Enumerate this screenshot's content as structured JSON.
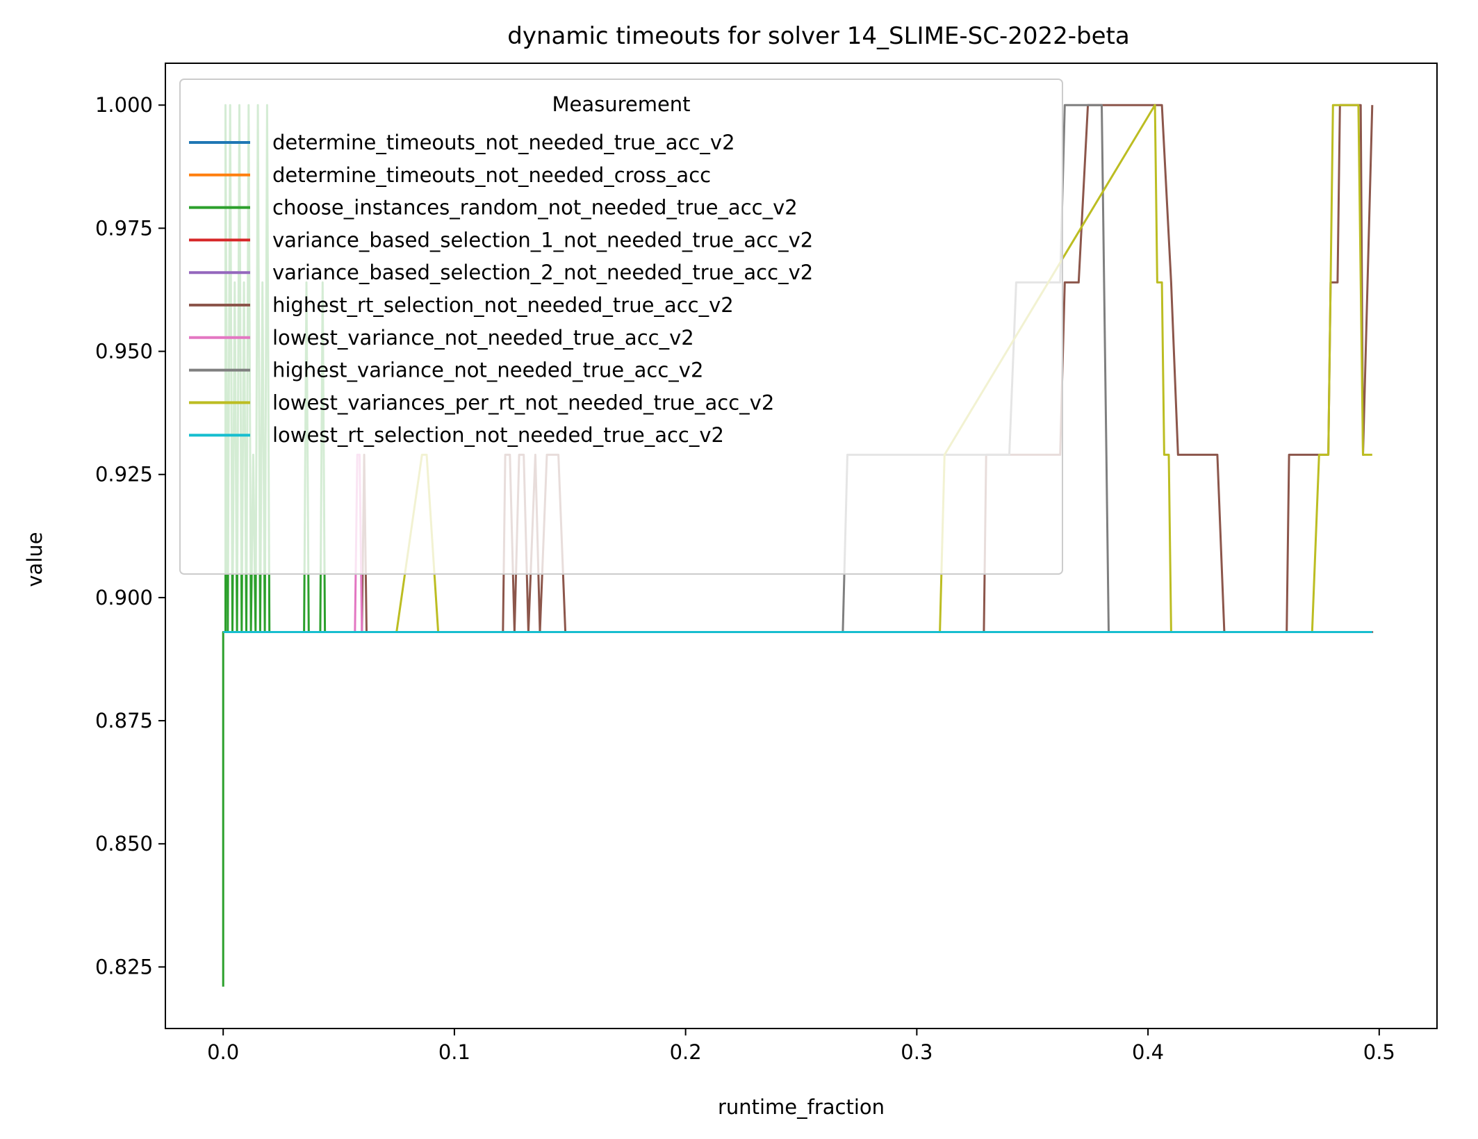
{
  "chart_data": {
    "type": "line",
    "title": "dynamic timeouts for solver 14_SLIME-SC-2022-beta",
    "xlabel": "runtime_fraction",
    "ylabel": "value",
    "xlim": [
      -0.025,
      0.525
    ],
    "ylim": [
      0.8125,
      1.0085
    ],
    "xticks": [
      0.0,
      0.1,
      0.2,
      0.3,
      0.4,
      0.5
    ],
    "xtick_labels": [
      "0.0",
      "0.1",
      "0.2",
      "0.3",
      "0.4",
      "0.5"
    ],
    "yticks": [
      0.825,
      0.85,
      0.875,
      0.9,
      0.925,
      0.95,
      0.975,
      1.0
    ],
    "ytick_labels": [
      "0.825",
      "0.850",
      "0.875",
      "0.900",
      "0.925",
      "0.950",
      "0.975",
      "1.000"
    ],
    "grid": false,
    "legend": {
      "title": "Measurement",
      "placement": "upper-left"
    },
    "series": [
      {
        "name": "determine_timeouts_not_needed_true_acc_v2",
        "color": "#1f77b4",
        "x": [
          0.0,
          0.497
        ],
        "y": [
          0.893,
          0.893
        ]
      },
      {
        "name": "determine_timeouts_not_needed_cross_acc",
        "color": "#ff7f0e",
        "x": [
          0.0,
          0.497
        ],
        "y": [
          0.893,
          0.893
        ]
      },
      {
        "name": "choose_instances_random_not_needed_true_acc_v2",
        "color": "#2ca02c",
        "x": [
          0.0,
          0.0,
          0.001,
          0.001,
          0.002,
          0.003,
          0.004,
          0.005,
          0.006,
          0.007,
          0.008,
          0.009,
          0.01,
          0.011,
          0.012,
          0.013,
          0.014,
          0.015,
          0.016,
          0.017,
          0.018,
          0.019,
          0.02,
          0.021,
          0.035,
          0.036,
          0.037,
          0.038,
          0.042,
          0.043,
          0.044,
          0.045,
          0.497
        ],
        "y": [
          0.821,
          0.893,
          0.893,
          1.0,
          0.893,
          1.0,
          0.893,
          0.964,
          0.893,
          1.0,
          0.893,
          0.964,
          0.893,
          1.0,
          0.893,
          0.929,
          0.893,
          1.0,
          0.893,
          0.964,
          0.893,
          1.0,
          0.893,
          0.893,
          0.893,
          0.964,
          0.893,
          0.893,
          0.893,
          0.964,
          0.893,
          0.893,
          0.893
        ]
      },
      {
        "name": "variance_based_selection_1_not_needed_true_acc_v2",
        "color": "#d62728",
        "x": [
          0.0,
          0.497
        ],
        "y": [
          0.893,
          0.893
        ]
      },
      {
        "name": "variance_based_selection_2_not_needed_true_acc_v2",
        "color": "#9467bd",
        "x": [
          0.0,
          0.497
        ],
        "y": [
          0.893,
          0.893
        ]
      },
      {
        "name": "highest_rt_selection_not_needed_true_acc_v2",
        "color": "#8c564b",
        "x": [
          0.0,
          0.06,
          0.061,
          0.062,
          0.121,
          0.122,
          0.124,
          0.126,
          0.128,
          0.13,
          0.132,
          0.135,
          0.137,
          0.14,
          0.145,
          0.148,
          0.497,
          0.329,
          0.33,
          0.36,
          0.362,
          0.364,
          0.37,
          0.374,
          0.376,
          0.38,
          0.406,
          0.41,
          0.413,
          0.43,
          0.433,
          0.46,
          0.461,
          0.478,
          0.479,
          0.482,
          0.483,
          0.484,
          0.492,
          0.493,
          0.497
        ],
        "y": [
          0.893,
          0.893,
          0.929,
          0.893,
          0.893,
          0.929,
          0.929,
          0.893,
          0.929,
          0.929,
          0.893,
          0.929,
          0.893,
          0.929,
          0.929,
          0.893,
          0.893,
          0.893,
          0.929,
          0.929,
          0.929,
          0.964,
          0.964,
          1.0,
          1.0,
          1.0,
          1.0,
          0.964,
          0.929,
          0.929,
          0.893,
          0.893,
          0.929,
          0.929,
          0.964,
          0.964,
          1.0,
          1.0,
          1.0,
          0.929,
          1.0
        ]
      },
      {
        "name": "lowest_variance_not_needed_true_acc_v2",
        "color": "#e377c2",
        "x": [
          0.0,
          0.057,
          0.058,
          0.059,
          0.06,
          0.497
        ],
        "y": [
          0.893,
          0.893,
          0.929,
          0.929,
          0.893,
          0.893
        ]
      },
      {
        "name": "highest_variance_not_needed_true_acc_v2",
        "color": "#7f7f7f",
        "x": [
          0.0,
          0.268,
          0.27,
          0.34,
          0.343,
          0.362,
          0.364,
          0.38,
          0.382,
          0.383,
          0.385,
          0.497
        ],
        "y": [
          0.893,
          0.893,
          0.929,
          0.929,
          0.964,
          0.964,
          1.0,
          1.0,
          0.929,
          0.893,
          0.893,
          0.893
        ]
      },
      {
        "name": "lowest_variances_per_rt_not_needed_true_acc_v2",
        "color": "#bcbd22",
        "x": [
          0.0,
          0.071,
          0.075,
          0.086,
          0.088,
          0.093,
          0.095,
          0.31,
          0.312,
          0.403,
          0.404,
          0.406,
          0.407,
          0.409,
          0.41,
          0.471,
          0.474,
          0.478,
          0.48,
          0.483,
          0.486,
          0.491,
          0.493,
          0.495,
          0.497
        ],
        "y": [
          0.893,
          0.893,
          0.893,
          0.929,
          0.929,
          0.893,
          0.893,
          0.893,
          0.929,
          1.0,
          0.964,
          0.964,
          0.929,
          0.929,
          0.893,
          0.893,
          0.929,
          0.929,
          1.0,
          1.0,
          1.0,
          1.0,
          0.929,
          0.929,
          0.929
        ]
      },
      {
        "name": "lowest_rt_selection_not_needed_true_acc_v2",
        "color": "#17becf",
        "x": [
          0.0,
          0.497
        ],
        "y": [
          0.893,
          0.893
        ]
      }
    ]
  }
}
